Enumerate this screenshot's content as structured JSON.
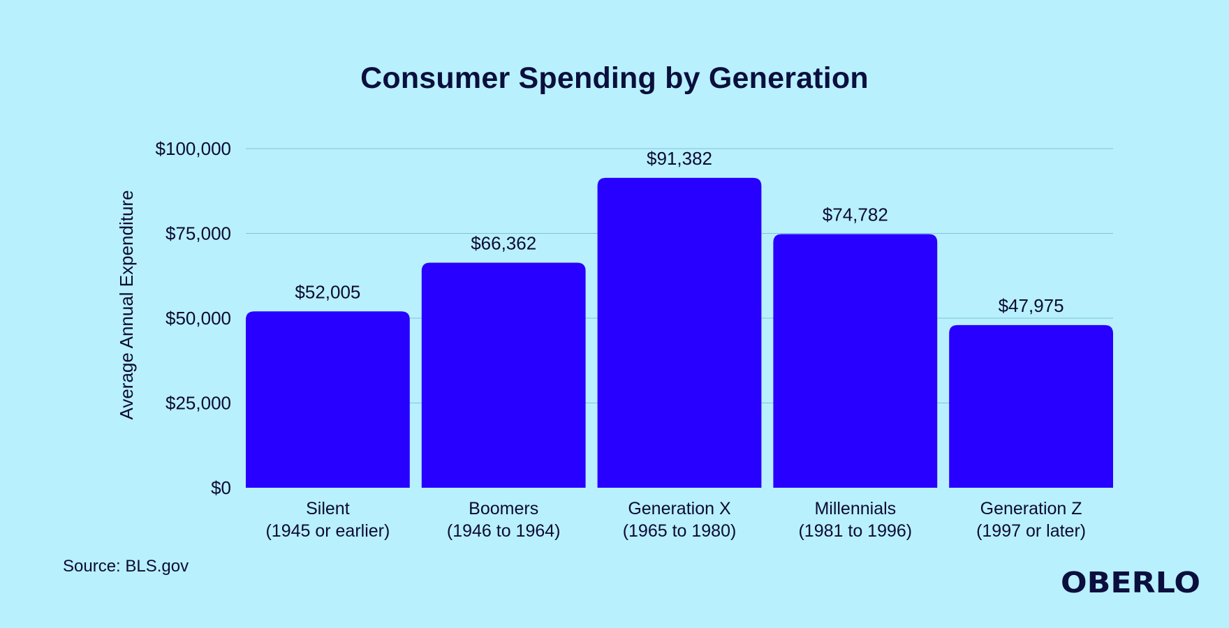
{
  "header": {
    "title": "Consumer Spending by Generation"
  },
  "footer": {
    "source": "Source: BLS.gov",
    "brand": "OBERLO"
  },
  "colors": {
    "background": "#b9f0fe",
    "bar": "#2700ff",
    "text": "#0b0b33",
    "grid": "#7fc3d6"
  },
  "chart_data": {
    "type": "bar",
    "title": "Consumer Spending by Generation",
    "xlabel": "",
    "ylabel": "Average Annual Expenditure",
    "ylim": [
      0,
      100000
    ],
    "grid": true,
    "yticks": [
      {
        "value": 0,
        "label": "$0"
      },
      {
        "value": 25000,
        "label": "$25,000"
      },
      {
        "value": 50000,
        "label": "$50,000"
      },
      {
        "value": 75000,
        "label": "$75,000"
      },
      {
        "value": 100000,
        "label": "$100,000"
      }
    ],
    "categories": [
      {
        "name": "Silent",
        "range": "(1945 or earlier)"
      },
      {
        "name": "Boomers",
        "range": "(1946 to 1964)"
      },
      {
        "name": "Generation X",
        "range": "(1965 to 1980)"
      },
      {
        "name": "Millennials",
        "range": "(1981 to 1996)"
      },
      {
        "name": "Generation Z",
        "range": "(1997 or later)"
      }
    ],
    "values": [
      52005,
      66362,
      91382,
      74782,
      47975
    ],
    "value_labels": [
      "$52,005",
      "$66,362",
      "$91,382",
      "$74,782",
      "$47,975"
    ]
  }
}
